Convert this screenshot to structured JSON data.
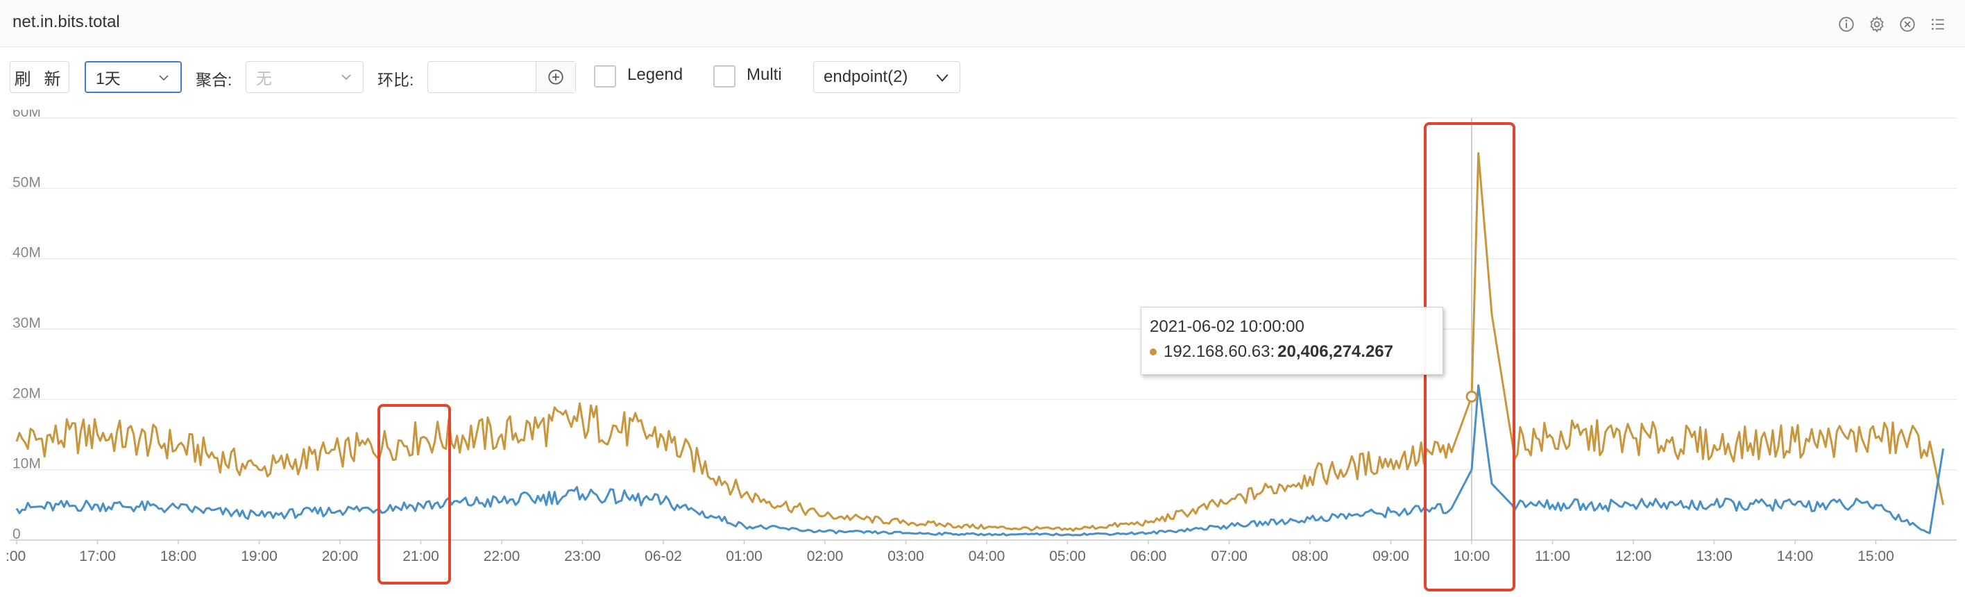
{
  "panel": {
    "title": "net.in.bits.total"
  },
  "header_icons": [
    "info-icon",
    "gear-icon",
    "close-circle-icon",
    "list-icon"
  ],
  "toolbar": {
    "refresh_label": "刷 新",
    "range_value": "1天",
    "agg_label": "聚合:",
    "agg_value": "无",
    "compare_label": "环比:",
    "compare_value": "",
    "legend_label": "Legend",
    "multi_label": "Multi",
    "endpoint_label": "endpoint(2)"
  },
  "tooltip": {
    "time": "2021-06-02 10:00:00",
    "series": "192.168.60.63",
    "sep": ":",
    "value": "20,406,274.267"
  },
  "colors": {
    "series_orange": "#c9963e",
    "series_blue": "#4a90c8",
    "highlight_box": "#e2442f"
  },
  "chart_data": {
    "type": "line",
    "x_tick_labels": [
      ":00",
      "17:00",
      "18:00",
      "19:00",
      "20:00",
      "21:00",
      "22:00",
      "23:00",
      "06-02",
      "01:00",
      "02:00",
      "03:00",
      "04:00",
      "05:00",
      "06:00",
      "07:00",
      "08:00",
      "09:00",
      "10:00",
      "11:00",
      "12:00",
      "13:00",
      "14:00",
      "15:00"
    ],
    "y_tick_labels": [
      "0",
      "10M",
      "20M",
      "30M",
      "40M",
      "50M",
      "60M"
    ],
    "ylim": [
      0,
      60000000
    ],
    "grid": true,
    "x": [
      "16:00",
      "17:00",
      "18:00",
      "19:00",
      "20:00",
      "21:00",
      "22:00",
      "23:00",
      "00:00",
      "01:00",
      "02:00",
      "03:00",
      "04:00",
      "05:00",
      "06:00",
      "07:00",
      "08:00",
      "09:00",
      "09:45",
      "10:00",
      "10:05",
      "10:15",
      "10:30",
      "11:00",
      "12:00",
      "13:00",
      "14:00",
      "15:00",
      "15:40",
      "15:50"
    ],
    "series": [
      {
        "name": "192.168.60.63",
        "color": "#c9963e",
        "values": [
          14000000,
          15000000,
          13500000,
          10000000,
          12500000,
          14500000,
          15000000,
          17000000,
          14500000,
          6500000,
          3500000,
          2500000,
          1800000,
          1500000,
          2500000,
          5500000,
          9000000,
          11500000,
          12500000,
          20406274,
          55000000,
          32000000,
          14000000,
          14500000,
          14500000,
          13500000,
          14000000,
          14500000,
          14000000,
          5000000
        ]
      },
      {
        "name": "",
        "color": "#4a90c8",
        "values": [
          4500000,
          5000000,
          4500000,
          3500000,
          4200000,
          5000000,
          5500000,
          6500000,
          5500000,
          2000000,
          1200000,
          1000000,
          800000,
          800000,
          1000000,
          2000000,
          3000000,
          4000000,
          4500000,
          10000000,
          22000000,
          8000000,
          5000000,
          5000000,
          5000000,
          5000000,
          5000000,
          5000000,
          1000000,
          13000000
        ]
      }
    ]
  }
}
